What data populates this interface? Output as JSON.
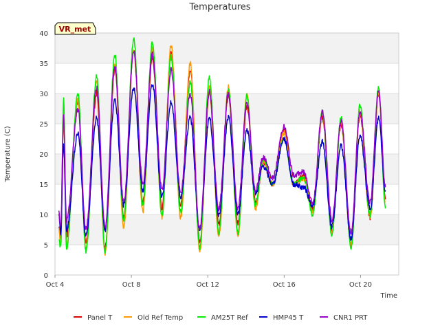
{
  "chart_data": {
    "type": "line",
    "title": "Temperatures",
    "xlabel": "Time",
    "ylabel": "Temperature (C)",
    "xlim": [
      4.0,
      22.0
    ],
    "ylim": [
      0,
      40
    ],
    "yticks": [
      0,
      5,
      10,
      15,
      20,
      25,
      30,
      35,
      40
    ],
    "xticks": [
      {
        "value": 4,
        "label": "Oct 4"
      },
      {
        "value": 8,
        "label": "Oct 8"
      },
      {
        "value": 12,
        "label": "Oct 12"
      },
      {
        "value": 16,
        "label": "Oct 16"
      },
      {
        "value": 20,
        "label": "Oct 20"
      }
    ],
    "badge": "VR_met",
    "legend_position": "bottom",
    "daily_extremes": {
      "days": [
        4.3,
        5.3,
        6.3,
        7.3,
        8.3,
        9.3,
        10.3,
        11.3,
        12.3,
        13.3,
        14.3,
        15.3,
        16.3,
        17.3,
        18.3,
        19.3,
        20.3,
        21.3
      ],
      "min_times": [
        4.6,
        5.62,
        6.62,
        7.6,
        8.6,
        9.6,
        10.6,
        11.58,
        12.58,
        13.6,
        14.6,
        15.7,
        16.7,
        17.7,
        18.62,
        19.62,
        20.62,
        21.62
      ],
      "max_times": [
        4.25,
        5.2,
        6.18,
        7.13,
        8.12,
        9.1,
        10.08,
        11.08,
        12.08,
        13.08,
        14.05,
        15.05,
        15.99,
        17.02,
        18.0,
        18.98,
        19.97,
        20.95
      ],
      "note": "approximate timing of daily minima/maxima read from the plot"
    },
    "series": [
      {
        "name": "Panel T",
        "color": "#dd0000",
        "x": [
          4.2,
          4.3,
          4.45,
          4.6,
          5.2,
          5.62,
          6.18,
          6.62,
          7.13,
          7.6,
          8.12,
          8.6,
          9.1,
          9.6,
          10.08,
          10.58,
          11.08,
          11.58,
          12.08,
          12.58,
          13.08,
          13.58,
          14.05,
          14.5,
          14.9,
          15.4,
          15.99,
          16.5,
          17.02,
          17.5,
          18.0,
          18.5,
          18.98,
          19.5,
          19.97,
          20.5,
          20.95,
          21.3
        ],
        "y": [
          8,
          6,
          26,
          6.5,
          28.5,
          5.5,
          30,
          4.5,
          34,
          9.5,
          37,
          12,
          36,
          11,
          37,
          11.5,
          34,
          5.5,
          30,
          8.5,
          29.5,
          8.5,
          28,
          12,
          18.5,
          15,
          24,
          15,
          16.5,
          11,
          26,
          7.5,
          25,
          5,
          26.5,
          9.5,
          30,
          12.5
        ]
      },
      {
        "name": "Old Ref Temp",
        "color": "#ff9900",
        "x": [
          4.2,
          4.3,
          4.45,
          4.6,
          5.2,
          5.62,
          6.18,
          6.62,
          7.13,
          7.6,
          8.12,
          8.6,
          9.1,
          9.6,
          10.08,
          10.58,
          11.08,
          11.58,
          12.08,
          12.58,
          13.08,
          13.58,
          14.05,
          14.5,
          14.9,
          15.4,
          15.99,
          16.5,
          17.02,
          17.5,
          18.0,
          18.5,
          18.98,
          19.5,
          19.97,
          20.5,
          20.95,
          21.3
        ],
        "y": [
          7.5,
          5,
          28,
          5,
          29,
          4.5,
          32,
          3.5,
          35,
          8,
          37.5,
          10.5,
          37.5,
          9.5,
          38,
          9.5,
          35,
          4,
          31,
          6.5,
          31,
          6.5,
          30,
          11,
          19,
          15,
          23.5,
          15,
          16,
          10.5,
          27,
          7,
          25.5,
          5,
          27,
          9.5,
          30.5,
          12
        ]
      },
      {
        "name": "AM25T Ref",
        "color": "#00ee00",
        "x": [
          4.2,
          4.3,
          4.45,
          4.6,
          5.2,
          5.62,
          6.18,
          6.62,
          7.13,
          7.6,
          8.12,
          8.6,
          9.1,
          9.6,
          10.08,
          10.58,
          11.08,
          11.58,
          12.08,
          12.58,
          13.08,
          13.58,
          14.05,
          14.5,
          14.9,
          15.4,
          15.99,
          16.5,
          17.02,
          17.5,
          18.0,
          18.5,
          18.98,
          19.5,
          19.97,
          20.5,
          20.95,
          21.3
        ],
        "y": [
          6,
          4.5,
          29,
          4.5,
          30,
          4,
          33,
          4,
          36.5,
          9,
          39,
          11.5,
          38.5,
          10,
          36,
          10.5,
          32,
          4.5,
          32.5,
          7,
          30.5,
          7,
          29.5,
          11.5,
          19,
          15,
          22.5,
          15,
          16,
          10,
          27,
          6.5,
          26,
          4.5,
          28,
          10,
          31,
          11
        ]
      },
      {
        "name": "HMP45 T",
        "color": "#0000cc",
        "x": [
          4.2,
          4.3,
          4.45,
          4.6,
          5.2,
          5.62,
          6.18,
          6.62,
          7.13,
          7.6,
          8.12,
          8.6,
          9.1,
          9.6,
          10.08,
          10.58,
          11.08,
          11.58,
          12.08,
          12.58,
          13.08,
          13.58,
          14.05,
          14.5,
          14.9,
          15.4,
          15.99,
          16.5,
          17.02,
          17.5,
          18.0,
          18.5,
          18.98,
          19.5,
          19.97,
          20.5,
          20.95,
          21.3
        ],
        "y": [
          10,
          7,
          21.5,
          7.5,
          23.5,
          6.5,
          26,
          7.5,
          29,
          11.5,
          31,
          14,
          31.5,
          13,
          28.5,
          13,
          26,
          7.5,
          26,
          10,
          26,
          10,
          24,
          13.5,
          18,
          15,
          22.5,
          15,
          14.5,
          11.5,
          22,
          8,
          21.5,
          6,
          23,
          11,
          26,
          14
        ]
      },
      {
        "name": "CNR1 PRT",
        "color": "#9900cc",
        "x": [
          4.2,
          4.3,
          4.45,
          4.6,
          5.2,
          5.62,
          6.18,
          6.62,
          7.13,
          7.6,
          8.12,
          8.6,
          9.1,
          9.6,
          10.08,
          10.58,
          11.08,
          11.58,
          12.08,
          12.58,
          13.08,
          13.58,
          14.05,
          14.5,
          14.9,
          15.4,
          15.99,
          16.5,
          17.02,
          17.5,
          18.0,
          18.5,
          18.98,
          19.5,
          19.97,
          20.5,
          20.95,
          21.3
        ],
        "y": [
          10.5,
          8,
          26.5,
          9,
          27.5,
          7.5,
          31,
          8,
          34.5,
          12,
          37,
          15,
          36.5,
          14,
          34,
          13.5,
          30,
          7.5,
          30.5,
          11,
          30,
          11,
          28.5,
          14,
          19.5,
          16,
          24.5,
          16.5,
          17,
          12,
          27,
          9,
          25.5,
          7,
          27,
          12,
          30.5,
          14.5
        ]
      }
    ]
  }
}
